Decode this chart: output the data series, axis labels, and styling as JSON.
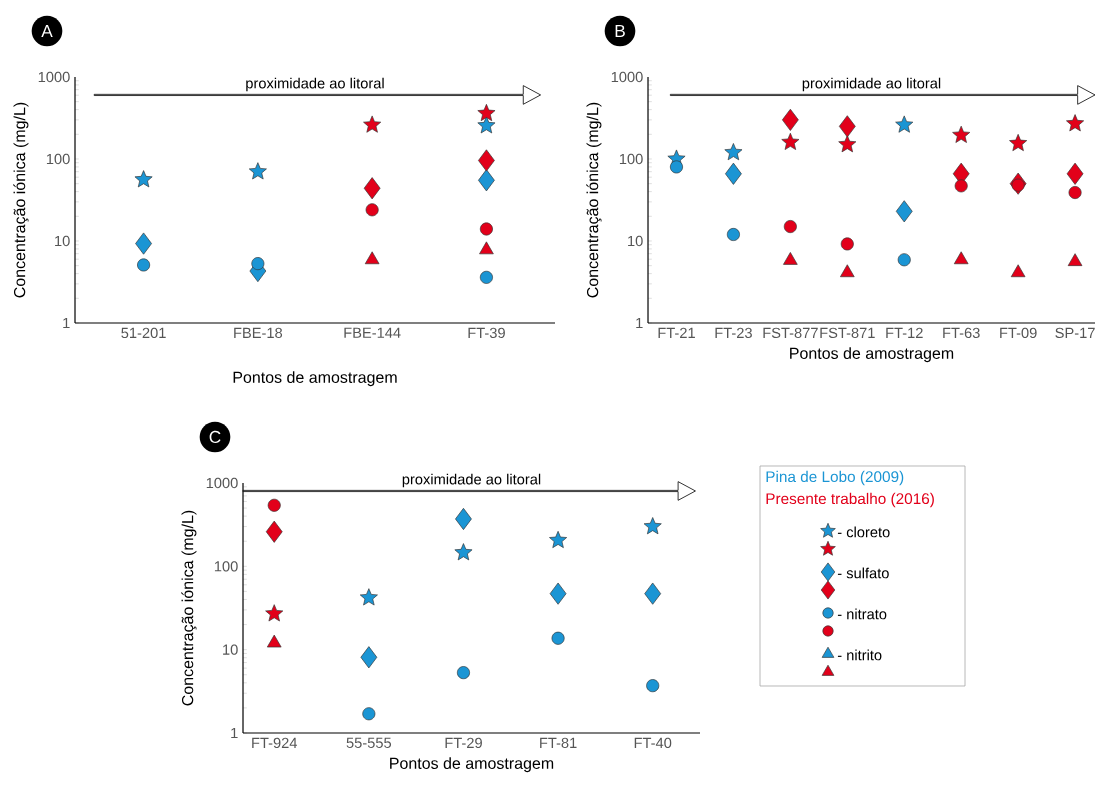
{
  "chart_data": [
    {
      "type": "scatter",
      "title": "A",
      "xlabel": "Pontos de amostragem",
      "ylabel": "Concentração iónica (mg/L)",
      "log": "y",
      "ylim": [
        1,
        1000
      ],
      "yticks": [
        1,
        10,
        100,
        1000
      ],
      "annotations": [
        "proximidade ao litoral"
      ],
      "categories": [
        "51-201",
        "FBE-18",
        "FBE-144",
        "FT-39"
      ],
      "series": [
        {
          "color": "#1b95d4",
          "marker": "star",
          "values": [
            56,
            70,
            null,
            255
          ]
        },
        {
          "color": "#1b95d4",
          "marker": "diamond",
          "values": [
            9.3,
            4.3,
            null,
            55
          ]
        },
        {
          "color": "#1b95d4",
          "marker": "circle",
          "values": [
            5.1,
            5.3,
            null,
            3.6
          ]
        },
        {
          "color": "#e2001a",
          "marker": "star",
          "values": [
            null,
            null,
            260,
            360
          ]
        },
        {
          "color": "#e2001a",
          "marker": "diamond",
          "values": [
            null,
            null,
            44,
            96
          ]
        },
        {
          "color": "#e2001a",
          "marker": "circle",
          "values": [
            null,
            null,
            24,
            14
          ]
        },
        {
          "color": "#e2001a",
          "marker": "triangle",
          "values": [
            null,
            null,
            5.9,
            7.8
          ]
        }
      ]
    },
    {
      "type": "scatter",
      "title": "B",
      "xlabel": "Pontos de amostragem",
      "ylabel": "Concentração iónica (mg/L)",
      "log": "y",
      "ylim": [
        1,
        1000
      ],
      "yticks": [
        1,
        10,
        100,
        1000
      ],
      "annotations": [
        "proximidade ao litoral"
      ],
      "categories": [
        "FT-21",
        "FT-23",
        "FST-877",
        "FST-871",
        "FT-12",
        "FT-63",
        "FT-09",
        "SP-17"
      ],
      "series": [
        {
          "color": "#1b95d4",
          "marker": "star",
          "values": [
            100,
            120,
            null,
            null,
            260,
            null,
            null,
            null
          ]
        },
        {
          "color": "#1b95d4",
          "marker": "diamond",
          "values": [
            null,
            66,
            null,
            null,
            23,
            null,
            null,
            null
          ]
        },
        {
          "color": "#1b95d4",
          "marker": "circle",
          "values": [
            80,
            12,
            null,
            null,
            5.9,
            null,
            null,
            null
          ]
        },
        {
          "color": "#e2001a",
          "marker": "star",
          "values": [
            null,
            null,
            160,
            150,
            null,
            195,
            155,
            270
          ]
        },
        {
          "color": "#e2001a",
          "marker": "diamond",
          "values": [
            null,
            null,
            300,
            250,
            null,
            66,
            50,
            66
          ]
        },
        {
          "color": "#e2001a",
          "marker": "circle",
          "values": [
            null,
            null,
            15,
            9.2,
            null,
            47,
            48,
            39
          ]
        },
        {
          "color": "#e2001a",
          "marker": "triangle",
          "values": [
            null,
            null,
            5.8,
            4.1,
            null,
            5.9,
            4.1,
            5.6
          ]
        }
      ]
    },
    {
      "type": "scatter",
      "title": "C",
      "xlabel": "Pontos de amostragem",
      "ylabel": "Concentração iónica (mg/L)",
      "log": "y",
      "ylim": [
        1,
        1000
      ],
      "yticks": [
        1,
        10,
        100,
        1000
      ],
      "legend": "right",
      "annotations": [
        "proximidade ao litoral",
        "Pina de Lobo (2009)",
        "Presente trabalho (2016)"
      ],
      "categories": [
        "FT-924",
        "55-555",
        "FT-29",
        "FT-81",
        "FT-40"
      ],
      "series": [
        {
          "name": "- cloreto",
          "color": "#1b95d4",
          "marker": "star",
          "values": [
            null,
            42,
            146,
            205,
            300
          ]
        },
        {
          "name": "- sulfato",
          "color": "#1b95d4",
          "marker": "diamond",
          "values": [
            null,
            8.1,
            370,
            47,
            47
          ]
        },
        {
          "name": "- nitrato",
          "color": "#1b95d4",
          "marker": "circle",
          "values": [
            null,
            1.7,
            5.3,
            13.7,
            3.7
          ]
        },
        {
          "name": "- nitrito",
          "color": "#1b95d4",
          "marker": "triangle",
          "values": [
            null,
            null,
            null,
            null,
            null
          ]
        },
        {
          "color": "#e2001a",
          "marker": "star",
          "values": [
            27,
            null,
            null,
            null,
            null
          ]
        },
        {
          "color": "#e2001a",
          "marker": "diamond",
          "values": [
            260,
            null,
            null,
            null,
            null
          ]
        },
        {
          "color": "#e2001a",
          "marker": "circle",
          "values": [
            540,
            null,
            null,
            null,
            null
          ]
        },
        {
          "color": "#e2001a",
          "marker": "triangle",
          "values": [
            12,
            null,
            null,
            null,
            null
          ]
        }
      ]
    }
  ]
}
